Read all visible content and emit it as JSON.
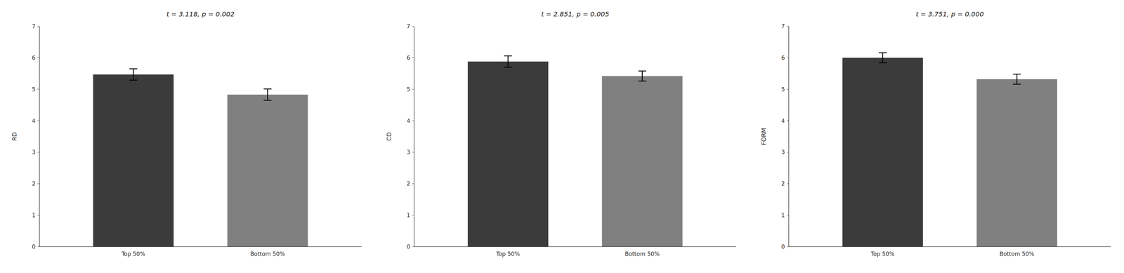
{
  "chart_data": [
    {
      "type": "bar",
      "title": "t = 3.118, p = 0.002",
      "ylabel": "RD",
      "categories": [
        "Top 50%",
        "Bottom 50%"
      ],
      "values": [
        5.47,
        4.83
      ],
      "errors": [
        0.18,
        0.18
      ],
      "colors": [
        "#3b3b3b",
        "#808080"
      ],
      "ylim": [
        0,
        7
      ],
      "yticks": [
        0,
        1,
        2,
        3,
        4,
        5,
        6,
        7
      ],
      "grid": false
    },
    {
      "type": "bar",
      "title": "t = 2.851, p = 0.005",
      "ylabel": "CD",
      "categories": [
        "Top 50%",
        "Bottom 50%"
      ],
      "values": [
        5.88,
        5.42
      ],
      "errors": [
        0.18,
        0.16
      ],
      "colors": [
        "#3b3b3b",
        "#808080"
      ],
      "ylim": [
        0,
        7
      ],
      "yticks": [
        0,
        1,
        2,
        3,
        4,
        5,
        6,
        7
      ],
      "grid": false
    },
    {
      "type": "bar",
      "title": "t = 3.751, p = 0.000",
      "ylabel": "FORM",
      "categories": [
        "Top 50%",
        "Bottom 50%"
      ],
      "values": [
        6.0,
        5.32
      ],
      "errors": [
        0.16,
        0.16
      ],
      "colors": [
        "#3b3b3b",
        "#808080"
      ],
      "ylim": [
        0,
        7
      ],
      "yticks": [
        0,
        1,
        2,
        3,
        4,
        5,
        6,
        7
      ],
      "grid": false
    }
  ]
}
